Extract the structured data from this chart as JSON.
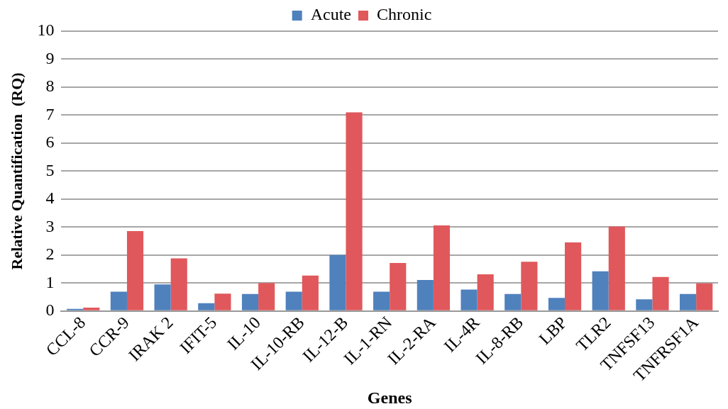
{
  "chart_data": {
    "type": "bar",
    "xlabel": "Genes",
    "ylabel": "Relative Quantification  (RQ)",
    "categories": [
      "CCL-8",
      "CCR-9",
      "IRAK 2",
      "IFIT-5",
      "IL-10",
      "IL-10-RB",
      "IL-12-B",
      "IL-1-RN",
      "IL-2-RA",
      "IL-4R",
      "IL-8-RB",
      "LBP",
      "TLR2",
      "TNFSF13",
      "TNFRSF1A"
    ],
    "series": [
      {
        "name": "Acute",
        "color": "#4f81bd",
        "values": [
          0.08,
          0.69,
          0.95,
          0.28,
          0.61,
          0.69,
          2.0,
          0.69,
          1.11,
          0.77,
          0.61,
          0.47,
          1.42,
          0.42,
          0.61
        ]
      },
      {
        "name": "Chronic",
        "color": "#e0585c",
        "values": [
          0.12,
          2.86,
          1.88,
          0.62,
          1.0,
          1.27,
          7.1,
          1.72,
          3.06,
          1.31,
          1.76,
          2.45,
          3.02,
          1.22,
          0.99
        ]
      }
    ],
    "ylim": [
      0,
      10
    ],
    "yticks": [
      0,
      1,
      2,
      3,
      4,
      5,
      6,
      7,
      8,
      9,
      10
    ],
    "grid": "y",
    "legend": "top"
  }
}
